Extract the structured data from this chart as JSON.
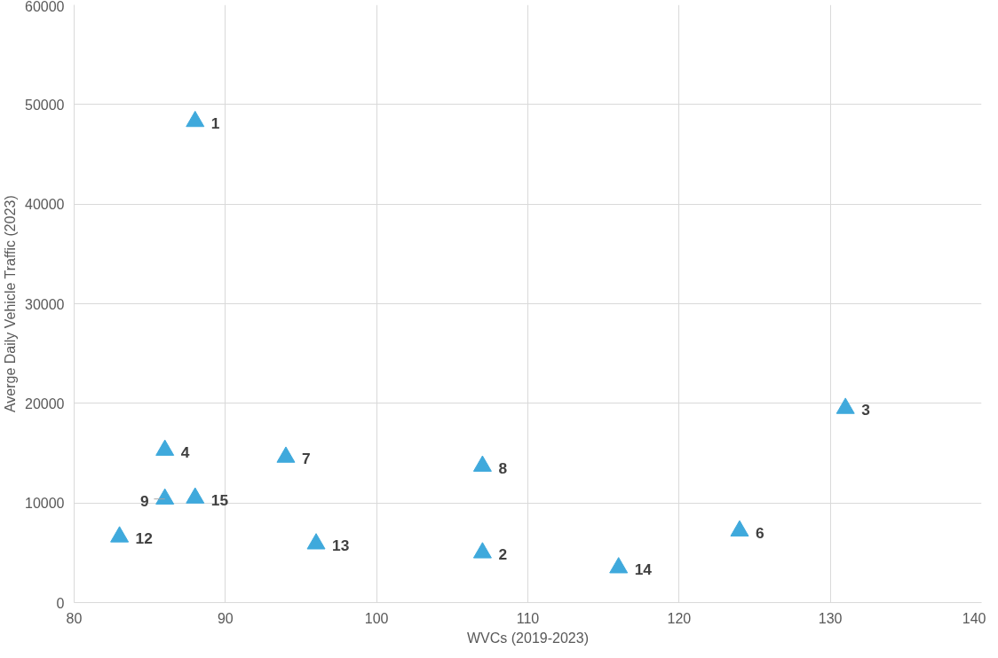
{
  "chart_data": {
    "type": "scatter",
    "xlabel": "WVCs (2019-2023)",
    "ylabel": "Averge Daily Vehicle Traffic (2023)",
    "x": [
      88,
      107,
      131,
      86,
      124,
      94,
      107,
      86,
      83,
      96,
      116,
      88
    ],
    "values": [
      48300,
      5000,
      19500,
      15300,
      7200,
      14600,
      13700,
      10400,
      6600,
      5900,
      3500,
      10500
    ],
    "annotations": [
      {
        "text": "1",
        "x": 88,
        "y": 48300
      },
      {
        "text": "2",
        "x": 107,
        "y": 5000
      },
      {
        "text": "3",
        "x": 131,
        "y": 19500
      },
      {
        "text": "4",
        "x": 86,
        "y": 15300
      },
      {
        "text": "6",
        "x": 124,
        "y": 7200
      },
      {
        "text": "7",
        "x": 94,
        "y": 14600
      },
      {
        "text": "8",
        "x": 107,
        "y": 13700
      },
      {
        "text": "9",
        "x": 86,
        "y": 10400
      },
      {
        "text": "12",
        "x": 83,
        "y": 6600
      },
      {
        "text": "13",
        "x": 96,
        "y": 5900
      },
      {
        "text": "14",
        "x": 116,
        "y": 3500
      },
      {
        "text": "15",
        "x": 88,
        "y": 10500
      }
    ],
    "color": "#3fa9dc",
    "marker": "triangle",
    "grid": true,
    "xlim": [
      80,
      140
    ],
    "xticks": [
      80,
      90,
      100,
      110,
      120,
      130,
      140
    ],
    "ylim": [
      0,
      60000
    ],
    "yticks": [
      0,
      10000,
      20000,
      30000,
      40000,
      50000,
      60000
    ]
  }
}
